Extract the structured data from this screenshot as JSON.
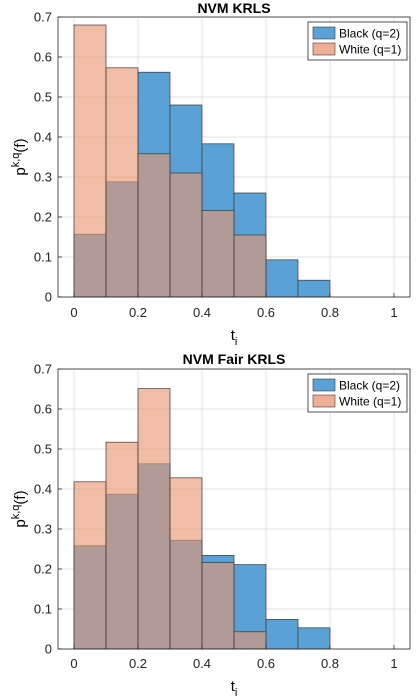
{
  "chart_data": [
    {
      "type": "bar",
      "title": "NVM KRLS",
      "xlabel": "t",
      "xlabel_sub": "i",
      "ylabel_base": "p",
      "ylabel_sup": "k,q",
      "ylabel_tail": "(f)",
      "xlim": [
        -0.05,
        1.05
      ],
      "ylim": [
        0,
        0.7
      ],
      "xticks": [
        0,
        0.2,
        0.4,
        0.6,
        0.8,
        1
      ],
      "xtick_labels": [
        "0",
        "0.2",
        "0.4",
        "0.6",
        "0.8",
        "1"
      ],
      "yticks": [
        0,
        0.1,
        0.2,
        0.3,
        0.4,
        0.5,
        0.6,
        0.7
      ],
      "ytick_labels": [
        "0",
        "0.1",
        "0.2",
        "0.3",
        "0.4",
        "0.5",
        "0.6",
        "0.7"
      ],
      "grid": true,
      "legend_position": "top-right",
      "bin_edges": [
        0,
        0.1,
        0.2,
        0.3,
        0.4,
        0.5,
        0.6,
        0.7,
        0.8,
        0.9,
        1.0
      ],
      "series": [
        {
          "name": "Black (q=2)",
          "color": "#5aa2d5",
          "values": [
            0.157,
            0.288,
            0.562,
            0.48,
            0.383,
            0.26,
            0.093,
            0.042,
            0,
            0
          ]
        },
        {
          "name": "White (q=1)",
          "color": "#e8956f",
          "values": [
            0.68,
            0.573,
            0.358,
            0.31,
            0.216,
            0.155,
            0,
            0,
            0,
            0
          ]
        }
      ]
    },
    {
      "type": "bar",
      "title": "NVM Fair KRLS",
      "xlabel": "t",
      "xlabel_sub": "i",
      "ylabel_base": "p",
      "ylabel_sup": "k,q",
      "ylabel_tail": "(f)",
      "xlim": [
        -0.05,
        1.05
      ],
      "ylim": [
        0,
        0.7
      ],
      "xticks": [
        0,
        0.2,
        0.4,
        0.6,
        0.8,
        1
      ],
      "xtick_labels": [
        "0",
        "0.2",
        "0.4",
        "0.6",
        "0.8",
        "1"
      ],
      "yticks": [
        0,
        0.1,
        0.2,
        0.3,
        0.4,
        0.5,
        0.6,
        0.7
      ],
      "ytick_labels": [
        "0",
        "0.1",
        "0.2",
        "0.3",
        "0.4",
        "0.5",
        "0.6",
        "0.7"
      ],
      "grid": true,
      "legend_position": "top-right",
      "bin_edges": [
        0,
        0.1,
        0.2,
        0.3,
        0.4,
        0.5,
        0.6,
        0.7,
        0.8,
        0.9,
        1.0
      ],
      "series": [
        {
          "name": "Black (q=2)",
          "color": "#5aa2d5",
          "values": [
            0.258,
            0.387,
            0.463,
            0.272,
            0.234,
            0.211,
            0.074,
            0.053,
            0,
            0
          ]
        },
        {
          "name": "White (q=1)",
          "color": "#e8956f",
          "values": [
            0.418,
            0.517,
            0.651,
            0.428,
            0.216,
            0.043,
            0,
            0,
            0,
            0
          ]
        }
      ]
    }
  ]
}
